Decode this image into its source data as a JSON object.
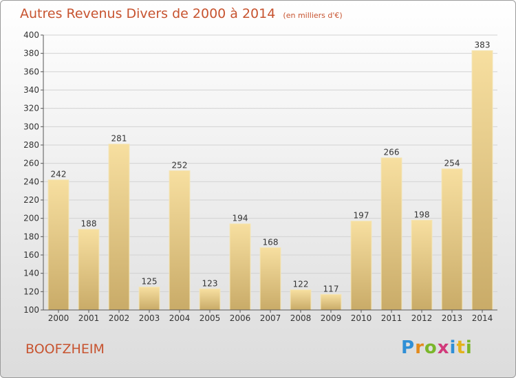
{
  "title": "Autres Revenus Divers de 2000 à 2014",
  "subtitle": "(en milliers d'€)",
  "place": "BOOFZHEIM",
  "logo": {
    "text": "Proxiti",
    "letters": [
      "P",
      "r",
      "o",
      "x",
      "i",
      "t",
      "i"
    ]
  },
  "colors": {
    "title": "#c7532f",
    "bar_light": "#f7dfa0",
    "bar_dark": "#c9ab68"
  },
  "chart_data": {
    "type": "bar",
    "title": "Autres Revenus Divers de 2000 à 2014",
    "subtitle": "(en milliers d'€)",
    "xlabel": "",
    "ylabel": "",
    "ylim": [
      100,
      400
    ],
    "yticks": [
      100,
      120,
      140,
      160,
      180,
      200,
      220,
      240,
      260,
      280,
      300,
      320,
      340,
      360,
      380,
      400
    ],
    "categories": [
      "2000",
      "2001",
      "2002",
      "2003",
      "2004",
      "2005",
      "2006",
      "2007",
      "2008",
      "2009",
      "2010",
      "2011",
      "2012",
      "2013",
      "2014"
    ],
    "values": [
      242,
      188,
      281,
      125,
      252,
      123,
      194,
      168,
      122,
      117,
      197,
      266,
      198,
      254,
      383
    ],
    "grid": true,
    "legend": "none"
  }
}
